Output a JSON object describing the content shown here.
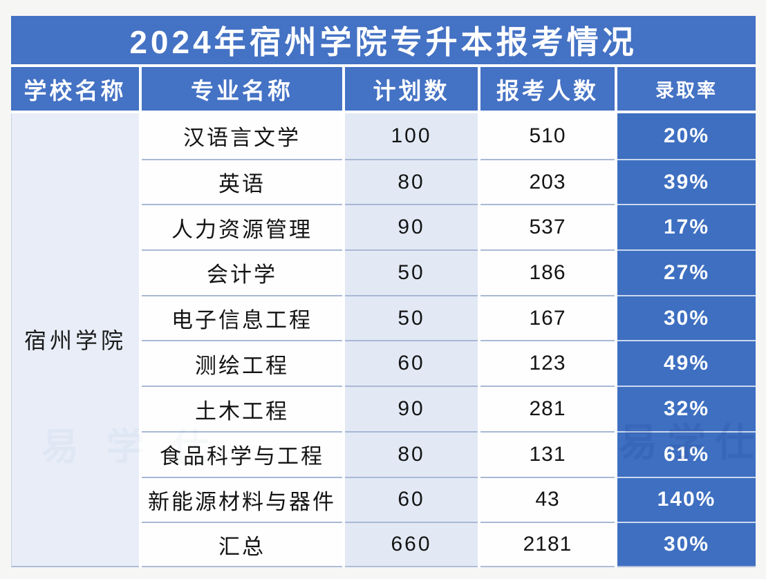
{
  "chart_data": {
    "type": "table",
    "title": "2024年宿州学院专升本报考情况",
    "columns": [
      "学校名称",
      "专业名称",
      "计划数",
      "报考人数",
      "录取率"
    ],
    "school": "宿州学院",
    "rows": [
      {
        "major": "汉语言文学",
        "plan": "100",
        "applicants": "510",
        "rate": "20%"
      },
      {
        "major": "英语",
        "plan": "80",
        "applicants": "203",
        "rate": "39%"
      },
      {
        "major": "人力资源管理",
        "plan": "90",
        "applicants": "537",
        "rate": "17%"
      },
      {
        "major": "会计学",
        "plan": "50",
        "applicants": "186",
        "rate": "27%"
      },
      {
        "major": "电子信息工程",
        "plan": "50",
        "applicants": "167",
        "rate": "30%"
      },
      {
        "major": "测绘工程",
        "plan": "60",
        "applicants": "123",
        "rate": "49%"
      },
      {
        "major": "土木工程",
        "plan": "90",
        "applicants": "281",
        "rate": "32%"
      },
      {
        "major": "食品科学与工程",
        "plan": "80",
        "applicants": "131",
        "rate": "61%"
      },
      {
        "major": "新能源材料与器件",
        "plan": "60",
        "applicants": "43",
        "rate": "140%"
      },
      {
        "major": "汇总",
        "plan": "660",
        "applicants": "2181",
        "rate": "30%"
      }
    ],
    "summary_row_label": "汇总",
    "layout_hints": {
      "merged_school_column": true,
      "rate_column_highlighted": true
    }
  },
  "watermark": "易学仕",
  "colors": {
    "title_header_blue": "#4472c4",
    "rate_column_blue": "#3e6fc1",
    "school_column_bg": "#e8edf8",
    "plan_column_bg": "#e2e9f5",
    "row_border": "#a8b8d5",
    "title_text": "#ffffff",
    "body_text": "#141414"
  }
}
